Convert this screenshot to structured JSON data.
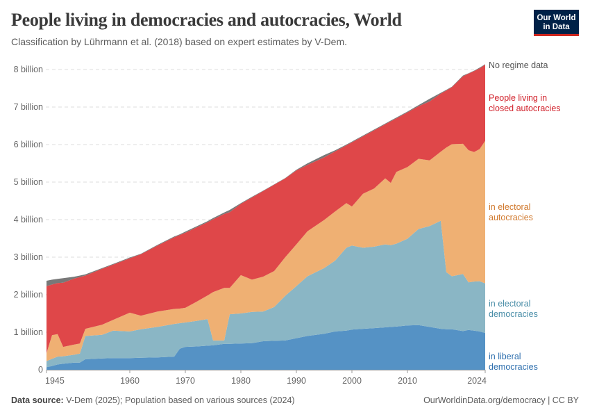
{
  "header": {
    "title": "People living in democracies and autocracies, World",
    "subtitle": "Classification by Lührmann et al. (2018) based on expert estimates by V-Dem.",
    "logo_line1": "Our World",
    "logo_line2": "in Data"
  },
  "footer": {
    "source_label": "Data source:",
    "source_text": "V-Dem (2025); Population based on various sources (2024)",
    "credit": "OurWorldinData.org/democracy | CC BY"
  },
  "chart_data": {
    "type": "area",
    "stacked": true,
    "title": "People living in democracies and autocracies, World",
    "xlabel": "",
    "ylabel": "",
    "xlim": [
      1945,
      2024
    ],
    "ylim": [
      0,
      8000000000
    ],
    "grid": "horizontal dashed",
    "legend": "right (inline labels)",
    "y_ticks": [
      {
        "value": 0,
        "label": "0"
      },
      {
        "value": 1000000000,
        "label": "1 billion"
      },
      {
        "value": 2000000000,
        "label": "2 billion"
      },
      {
        "value": 3000000000,
        "label": "3 billion"
      },
      {
        "value": 4000000000,
        "label": "4 billion"
      },
      {
        "value": 5000000000,
        "label": "5 billion"
      },
      {
        "value": 6000000000,
        "label": "6 billion"
      },
      {
        "value": 7000000000,
        "label": "7 billion"
      },
      {
        "value": 8000000000,
        "label": "8 billion"
      }
    ],
    "x_ticks": [
      "1945",
      "1960",
      "1970",
      "1980",
      "1990",
      "2000",
      "2010",
      "2024"
    ],
    "x": [
      1945,
      1946,
      1947,
      1948,
      1950,
      1951,
      1952,
      1955,
      1957,
      1960,
      1962,
      1965,
      1968,
      1969,
      1970,
      1972,
      1974,
      1975,
      1977,
      1978,
      1980,
      1982,
      1984,
      1986,
      1988,
      1990,
      1992,
      1995,
      1997,
      1999,
      2000,
      2002,
      2004,
      2006,
      2007,
      2008,
      2010,
      2012,
      2014,
      2016,
      2017,
      2018,
      2020,
      2021,
      2022,
      2023,
      2024
    ],
    "unit_multiplier": 1000000000,
    "series": [
      {
        "name": "in liberal democracies",
        "label_lines": [
          "in liberal",
          "democracies"
        ],
        "color": "#5592c5",
        "label_color": "#2e6fae",
        "values": [
          0.07,
          0.1,
          0.14,
          0.16,
          0.19,
          0.19,
          0.28,
          0.3,
          0.31,
          0.31,
          0.32,
          0.33,
          0.35,
          0.56,
          0.61,
          0.62,
          0.64,
          0.65,
          0.69,
          0.69,
          0.7,
          0.71,
          0.76,
          0.77,
          0.78,
          0.84,
          0.9,
          0.96,
          1.02,
          1.04,
          1.07,
          1.09,
          1.11,
          1.13,
          1.14,
          1.15,
          1.18,
          1.19,
          1.14,
          1.09,
          1.08,
          1.08,
          1.03,
          1.06,
          1.04,
          1.02,
          0.98
        ]
      },
      {
        "name": "in electoral democracies",
        "label_lines": [
          "in electoral",
          "democracies"
        ],
        "color": "#8ab6c5",
        "label_color": "#4a8ea8",
        "values": [
          0.16,
          0.19,
          0.21,
          0.2,
          0.21,
          0.24,
          0.62,
          0.63,
          0.73,
          0.71,
          0.76,
          0.81,
          0.87,
          0.68,
          0.65,
          0.68,
          0.71,
          0.13,
          0.09,
          0.79,
          0.8,
          0.83,
          0.79,
          0.9,
          1.19,
          1.39,
          1.59,
          1.75,
          1.89,
          2.21,
          2.24,
          2.16,
          2.17,
          2.21,
          2.18,
          2.21,
          2.31,
          2.56,
          2.69,
          2.88,
          1.52,
          1.41,
          1.52,
          1.27,
          1.31,
          1.34,
          1.32
        ]
      },
      {
        "name": "in electoral autocracies",
        "label_lines": [
          "in electoral",
          "autocracies"
        ],
        "color": "#efb073",
        "label_color": "#d0782c",
        "values": [
          0.21,
          0.63,
          0.6,
          0.25,
          0.27,
          0.27,
          0.19,
          0.27,
          0.29,
          0.5,
          0.36,
          0.41,
          0.4,
          0.39,
          0.39,
          0.51,
          0.63,
          1.29,
          1.4,
          0.7,
          1.02,
          0.86,
          0.93,
          0.96,
          1.03,
          1.11,
          1.2,
          1.28,
          1.31,
          1.19,
          1.04,
          1.44,
          1.55,
          1.76,
          1.66,
          1.91,
          1.91,
          1.87,
          1.75,
          1.84,
          3.32,
          3.52,
          3.47,
          3.52,
          3.45,
          3.52,
          3.8
        ]
      },
      {
        "name": "People living in closed autocracies",
        "label_lines": [
          "People living in",
          "closed autocracies"
        ],
        "color": "#df4749",
        "label_color": "#d1202a",
        "values": [
          1.79,
          1.35,
          1.36,
          1.71,
          1.76,
          1.77,
          1.42,
          1.49,
          1.47,
          1.45,
          1.64,
          1.76,
          1.91,
          1.96,
          2.0,
          1.98,
          1.95,
          1.94,
          1.97,
          2.02,
          1.9,
          2.19,
          2.28,
          2.3,
          2.1,
          1.97,
          1.77,
          1.67,
          1.6,
          1.54,
          1.71,
          1.53,
          1.55,
          1.44,
          1.64,
          1.43,
          1.46,
          1.4,
          1.57,
          1.55,
          1.52,
          1.52,
          1.8,
          2.04,
          2.16,
          2.15,
          2.03
        ]
      },
      {
        "name": "No regime data",
        "label_lines": [
          "No regime data"
        ],
        "color": "#787878",
        "label_color": "#555555",
        "values": [
          0.14,
          0.13,
          0.11,
          0.12,
          0.05,
          0.04,
          0.03,
          0.02,
          0.02,
          0.02,
          0.01,
          0.02,
          0.02,
          0.02,
          0.03,
          0.03,
          0.03,
          0.03,
          0.04,
          0.06,
          0.02,
          0.02,
          0.01,
          0.01,
          0.01,
          0.02,
          0.04,
          0.06,
          0.03,
          0.02,
          0.02,
          0.02,
          0.02,
          0.02,
          0.02,
          0.02,
          0.02,
          0.03,
          0.07,
          0.02,
          0.02,
          0.01,
          0.02,
          0.01,
          0.01,
          0.02,
          0.01
        ]
      }
    ]
  }
}
